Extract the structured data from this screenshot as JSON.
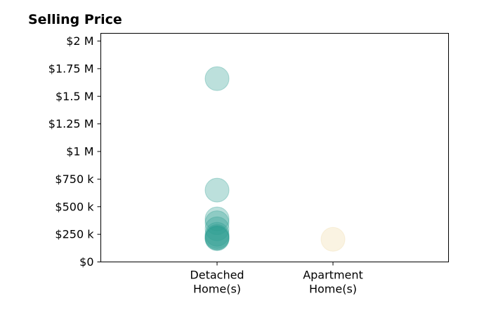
{
  "chart_data": {
    "type": "scatter",
    "title": "Selling Price",
    "xlabel": "",
    "ylabel": "",
    "grid": false,
    "categories": [
      [
        "Detached",
        "Home(s)"
      ],
      [
        "Apartment",
        "Home(s)"
      ]
    ],
    "ylim": [
      0,
      2070000
    ],
    "yticks": [
      0,
      250000,
      500000,
      750000,
      1000000,
      1250000,
      1500000,
      1750000,
      2000000
    ],
    "ytick_labels": [
      "$0",
      "$250 k",
      "$500 k",
      "$750 k",
      "$1 M",
      "$1.25 M",
      "$1.5 M",
      "$1.75 M",
      "$2 M"
    ],
    "series": [
      {
        "category_index": 0,
        "color": "#2e9e91",
        "values": [
          1660000,
          650000,
          390000,
          355000,
          300000,
          250000,
          230000,
          220000,
          215000,
          210000
        ]
      },
      {
        "category_index": 1,
        "color": "#efd9a6",
        "values": [
          205000
        ]
      }
    ]
  }
}
